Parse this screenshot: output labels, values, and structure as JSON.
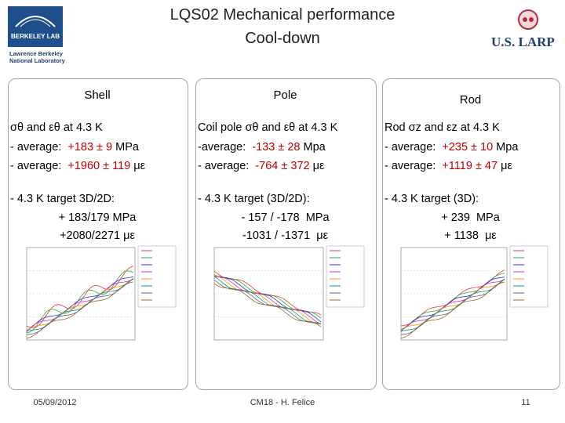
{
  "header": {
    "title": [
      "LQS02 Mechanical performance",
      "Cool-down"
    ],
    "logo_left": {
      "name": "BERKELEY LAB",
      "subtitle": [
        "Lawrence Berkeley",
        "National Laboratory"
      ]
    },
    "logo_right": "U.S. LARP"
  },
  "columns": [
    {
      "heading": "Shell",
      "average": {
        "label": "σθ and εθ at 4.3 K",
        "lines": [
          {
            "prefix": "- average:  ",
            "value": "+183 ± 9",
            "unit": " MPa"
          },
          {
            "prefix": "- average:  ",
            "value": "+1960 ± 119",
            "unit": " με"
          }
        ]
      },
      "target": {
        "label": "- 4.3 K target 3D/2D:",
        "values": [
          "+ 183/179 MPa",
          "+2080/2271 με"
        ]
      }
    },
    {
      "heading": "Pole",
      "average": {
        "label": "Coil pole σθ and εθ at 4.3 K",
        "lines": [
          {
            "prefix": "-average:  ",
            "value": "-133 ± 28",
            "unit": " Mpa"
          },
          {
            "prefix": "- average:  ",
            "value": "-764 ± 372",
            "unit": " με"
          }
        ]
      },
      "target": {
        "label": "- 4.3 K target (3D/2D):",
        "values": [
          "- 157 / -178  MPa",
          "-1031 / -1371  με"
        ]
      }
    },
    {
      "heading": "Rod",
      "average": {
        "label": "Rod σz and εz at 4.3 K",
        "lines": [
          {
            "prefix": "- average:  ",
            "value": "+235 ± 10",
            "unit": " Mpa"
          },
          {
            "prefix": "- average:  ",
            "value": "+1119 ± 47",
            "unit": " με"
          }
        ]
      },
      "target": {
        "label": "- 4.3 K target (3D):",
        "values": [
          "+ 239  MPa",
          "+ 1138  με"
        ]
      }
    }
  ],
  "footer": {
    "date": "05/09/2012",
    "center": "CM18 - H. Felice",
    "page": "11"
  }
}
